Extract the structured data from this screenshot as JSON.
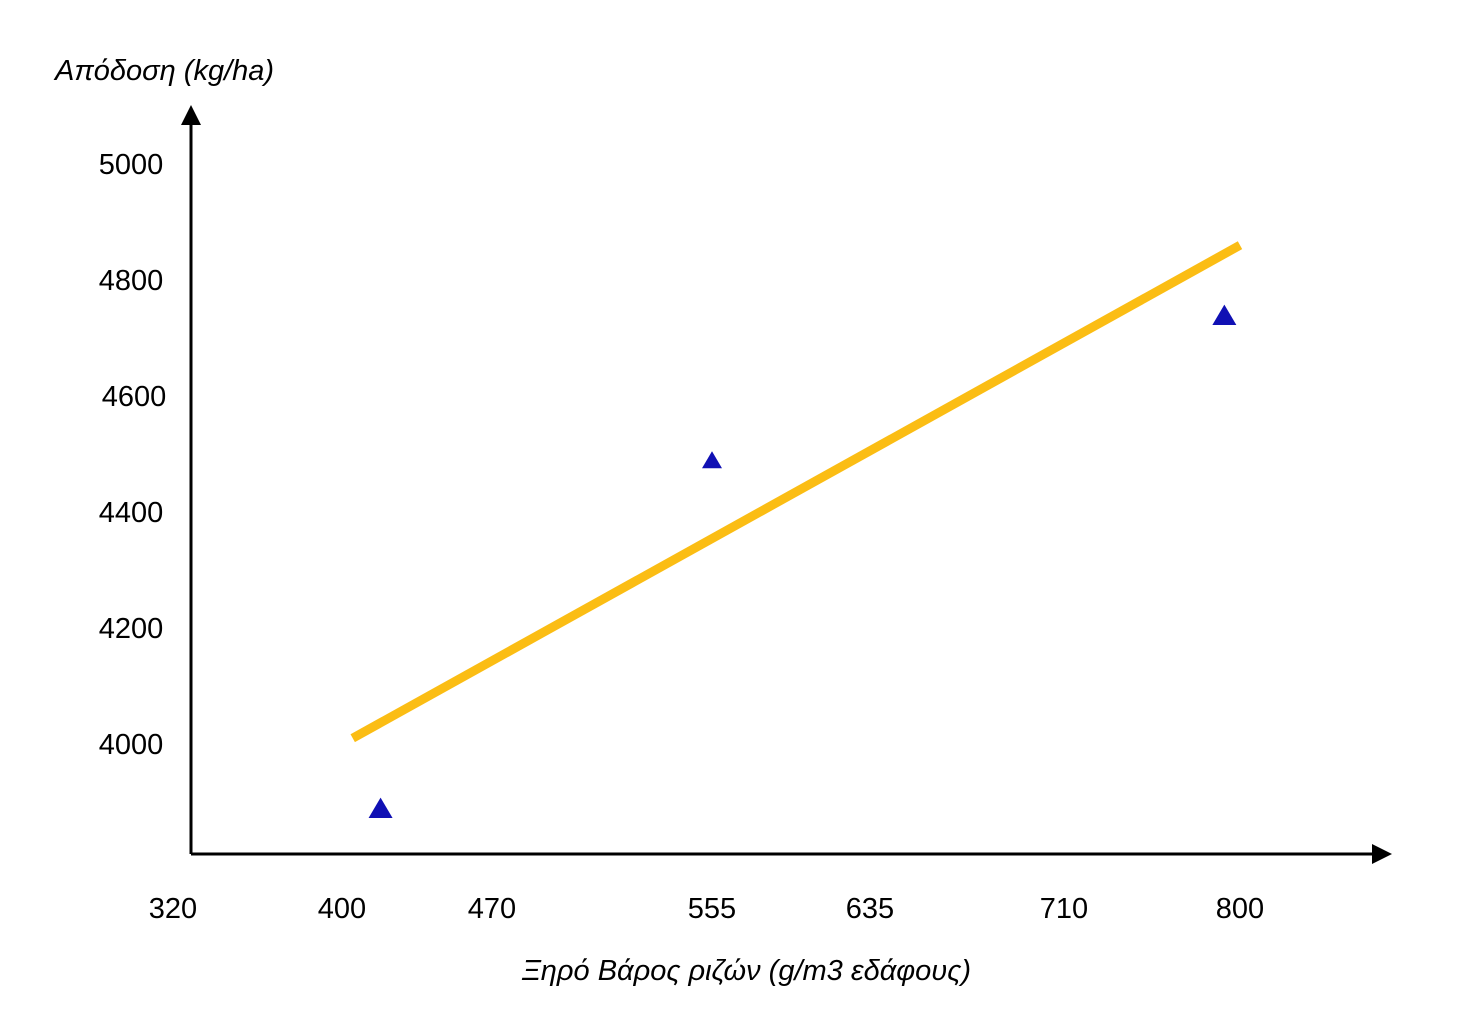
{
  "chart_data": {
    "type": "scatter",
    "title": "",
    "ylabel": "Απόδοση (kg/ha)",
    "xlabel": "Ξηρό Βάρος ριζών (g/m3 εδάφους)",
    "x_ticks": [
      "320",
      "400",
      "470",
      "555",
      "635",
      "710",
      "800"
    ],
    "y_ticks": [
      "4000",
      "4200",
      "4400",
      "4600",
      "4800",
      "5000"
    ],
    "points": [
      {
        "x": 418,
        "y": 3890
      },
      {
        "x": 555,
        "y": 4490
      },
      {
        "x": 792,
        "y": 4740
      }
    ],
    "trendline": {
      "start": {
        "x": 405,
        "y": 4010
      },
      "end": {
        "x": 800,
        "y": 4860
      }
    },
    "marker": "triangle",
    "colors": {
      "points": "#1010b4",
      "trendline": "#fbbd14",
      "axes": "#000000"
    },
    "grid": false,
    "legend": "none"
  }
}
